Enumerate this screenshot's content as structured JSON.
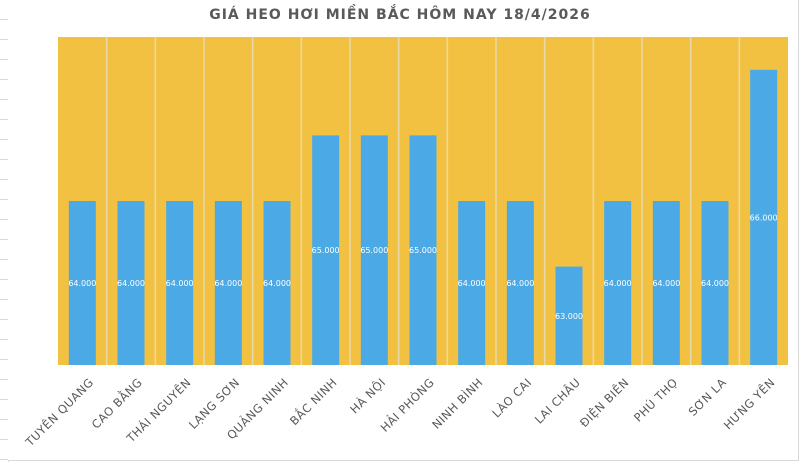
{
  "chart_data": {
    "type": "bar",
    "title": "GIÁ HEO HƠI MIỀN BẮC HÔM NAY 18/4/2026",
    "categories": [
      "TUYÊN QUANG",
      "CAO BẰNG",
      "THÁI NGUYÊN",
      "LẠNG SƠN",
      "QUẢNG NINH",
      "BẮC NINH",
      "HÀ NỘI",
      "HẢI PHÒNG",
      "NINH BÌNH",
      "LÀO CAI",
      "LAI CHÂU",
      "ĐIỆN BIÊN",
      "PHÚ THỌ",
      "SƠN LA",
      "HƯNG YÊN"
    ],
    "values": [
      64000,
      64000,
      64000,
      64000,
      64000,
      65000,
      65000,
      65000,
      64000,
      64000,
      63000,
      64000,
      64000,
      64000,
      66000
    ],
    "data_labels": [
      "64.000",
      "64.000",
      "64.000",
      "64.000",
      "64.000",
      "65.000",
      "65.000",
      "65.000",
      "64.000",
      "64.000",
      "63.000",
      "64.000",
      "64.000",
      "64.000",
      "66.000"
    ],
    "xlabel": "",
    "ylabel": "",
    "ylim": [
      61500,
      66500
    ],
    "grid": false,
    "legend": "none",
    "colors": {
      "bar": "#4BA9E6",
      "plot_background": "#F3C142",
      "separator": "#E8D9A8",
      "text": "#595959"
    }
  }
}
